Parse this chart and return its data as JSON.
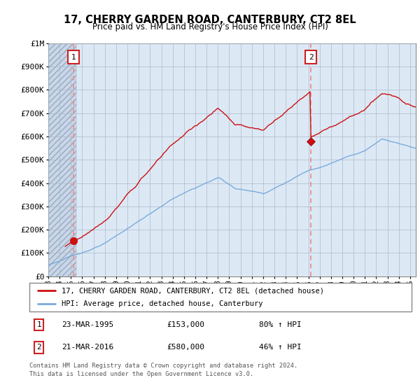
{
  "title": "17, CHERRY GARDEN ROAD, CANTERBURY, CT2 8EL",
  "subtitle": "Price paid vs. HM Land Registry's House Price Index (HPI)",
  "ylim": [
    0,
    1000000
  ],
  "xlim_start": 1993.0,
  "xlim_end": 2025.5,
  "sale1_date": 1995.22,
  "sale1_price": 153000,
  "sale1_label": "1",
  "sale2_date": 2016.22,
  "sale2_price": 580000,
  "sale2_label": "2",
  "background_plot": "#dce9f5",
  "background_hatch": "#c8d8ea",
  "hatch_end": 1995.5,
  "legend_line1": "17, CHERRY GARDEN ROAD, CANTERBURY, CT2 8EL (detached house)",
  "legend_line2": "HPI: Average price, detached house, Canterbury",
  "table_row1": [
    "1",
    "23-MAR-1995",
    "£153,000",
    "80% ↑ HPI"
  ],
  "table_row2": [
    "2",
    "21-MAR-2016",
    "£580,000",
    "46% ↑ HPI"
  ],
  "footer": "Contains HM Land Registry data © Crown copyright and database right 2024.\nThis data is licensed under the Open Government Licence v3.0.",
  "grid_color": "#b0b8c8",
  "hpi_line_color": "#7aaadd",
  "price_line_color": "#cc1111",
  "dashed_line_color": "#ee8888"
}
